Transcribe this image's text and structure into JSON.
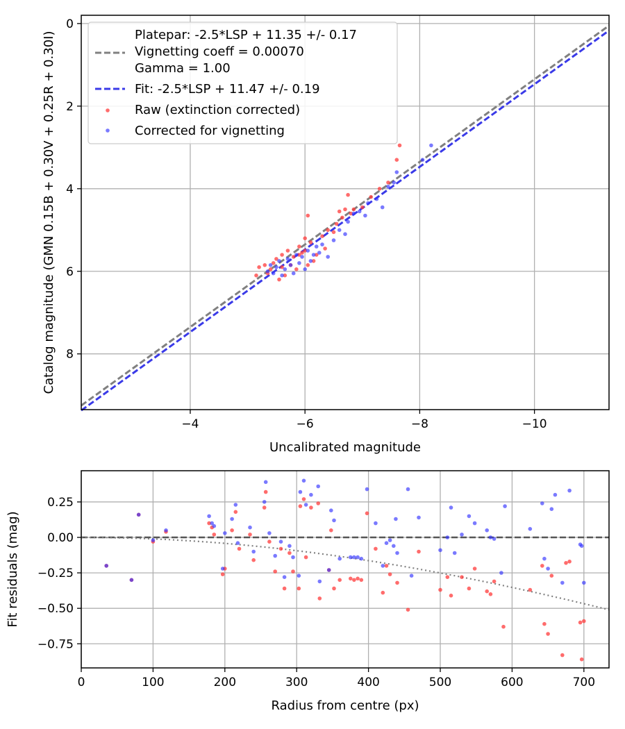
{
  "chart_data": [
    {
      "type": "scatter",
      "xlabel": "Uncalibrated magnitude",
      "ylabel": "Catalog magnitude (GMN 0.15B + 0.30V + 0.25R + 0.30I)",
      "xlim": [
        -2.1,
        -11.3
      ],
      "ylim": [
        9.35,
        -0.2
      ],
      "x_inverted": true,
      "y_inverted": true,
      "xticks": [
        -4,
        -6,
        -8,
        -10
      ],
      "xtick_labels": [
        "−4",
        "−6",
        "−8",
        "−10"
      ],
      "yticks": [
        0,
        2,
        4,
        6,
        8
      ],
      "ytick_labels": [
        "0",
        "2",
        "4",
        "6",
        "8"
      ],
      "grid": true,
      "legend_position": "top-left",
      "legend": [
        {
          "label": "Platepar: -2.5*LSP + 11.35 +/- 0.17",
          "marker": "none"
        },
        {
          "label": "Vignetting coeff = 0.00070",
          "marker": "dashed-line",
          "color": "#808080"
        },
        {
          "label": "Gamma = 1.00",
          "marker": "none"
        },
        {
          "label": "Fit: -2.5*LSP + 11.47 +/- 0.19",
          "marker": "dashed-line",
          "color": "#3a3ae8"
        },
        {
          "label": "Raw (extinction corrected)",
          "marker": "dot",
          "color": "#ff3b3b"
        },
        {
          "label": "Corrected for vignetting",
          "marker": "dot",
          "color": "#3333ff"
        }
      ],
      "lines": [
        {
          "name": "platepar",
          "style": "dashed",
          "color": "#808080",
          "slope": 1.0,
          "intercept": 11.35
        },
        {
          "name": "fit",
          "style": "dashed",
          "color": "#3a3ae8",
          "slope": 1.0,
          "intercept": 11.47
        }
      ],
      "series": [
        {
          "name": "Raw (extinction corrected)",
          "color": "#ff3b3b",
          "points": [
            [
              -5.15,
              6.1
            ],
            [
              -5.2,
              5.9
            ],
            [
              -5.3,
              5.85
            ],
            [
              -5.35,
              6.05
            ],
            [
              -5.4,
              5.95
            ],
            [
              -5.45,
              5.8
            ],
            [
              -5.5,
              5.7
            ],
            [
              -5.55,
              6.2
            ],
            [
              -5.6,
              5.6
            ],
            [
              -5.6,
              5.9
            ],
            [
              -5.65,
              6.1
            ],
            [
              -5.7,
              5.5
            ],
            [
              -5.75,
              5.85
            ],
            [
              -5.8,
              5.65
            ],
            [
              -5.85,
              5.95
            ],
            [
              -5.9,
              5.4
            ],
            [
              -5.9,
              5.6
            ],
            [
              -5.95,
              5.55
            ],
            [
              -6.0,
              5.2
            ],
            [
              -6.0,
              5.5
            ],
            [
              -6.05,
              4.65
            ],
            [
              -6.05,
              5.85
            ],
            [
              -6.1,
              5.3
            ],
            [
              -6.15,
              5.75
            ],
            [
              -6.2,
              5.6
            ],
            [
              -6.3,
              5.15
            ],
            [
              -6.35,
              5.45
            ],
            [
              -6.4,
              5.0
            ],
            [
              -6.5,
              5.05
            ],
            [
              -6.55,
              4.85
            ],
            [
              -6.6,
              4.55
            ],
            [
              -6.65,
              4.7
            ],
            [
              -6.7,
              4.5
            ],
            [
              -6.75,
              4.15
            ],
            [
              -6.8,
              4.6
            ],
            [
              -6.85,
              4.5
            ],
            [
              -7.0,
              4.45
            ],
            [
              -7.15,
              4.2
            ],
            [
              -7.3,
              4.0
            ],
            [
              -7.45,
              3.85
            ],
            [
              -7.6,
              3.3
            ],
            [
              -7.65,
              2.95
            ]
          ]
        },
        {
          "name": "Corrected for vignetting",
          "color": "#3333ff",
          "points": [
            [
              -5.35,
              6.0
            ],
            [
              -5.4,
              5.85
            ],
            [
              -5.45,
              6.05
            ],
            [
              -5.5,
              5.9
            ],
            [
              -5.55,
              5.75
            ],
            [
              -5.6,
              6.1
            ],
            [
              -5.65,
              5.95
            ],
            [
              -5.7,
              5.7
            ],
            [
              -5.75,
              5.85
            ],
            [
              -5.8,
              6.05
            ],
            [
              -5.85,
              5.6
            ],
            [
              -5.9,
              5.8
            ],
            [
              -5.95,
              5.65
            ],
            [
              -6.0,
              5.95
            ],
            [
              -6.05,
              5.5
            ],
            [
              -6.1,
              5.75
            ],
            [
              -6.15,
              5.6
            ],
            [
              -6.2,
              5.4
            ],
            [
              -6.25,
              5.55
            ],
            [
              -6.3,
              5.35
            ],
            [
              -6.4,
              5.65
            ],
            [
              -6.5,
              5.25
            ],
            [
              -6.6,
              5.0
            ],
            [
              -6.7,
              5.1
            ],
            [
              -6.75,
              4.8
            ],
            [
              -6.85,
              4.6
            ],
            [
              -6.95,
              4.55
            ],
            [
              -7.05,
              4.65
            ],
            [
              -7.1,
              4.35
            ],
            [
              -7.25,
              4.25
            ],
            [
              -7.35,
              4.45
            ],
            [
              -7.45,
              3.95
            ],
            [
              -7.55,
              3.85
            ],
            [
              -7.6,
              3.6
            ],
            [
              -8.05,
              3.3
            ],
            [
              -8.2,
              2.95
            ]
          ]
        }
      ]
    },
    {
      "type": "scatter",
      "xlabel": "Radius from centre (px)",
      "ylabel": "Fit residuals (mag)",
      "xlim": [
        0,
        735
      ],
      "ylim": [
        -0.92,
        0.47
      ],
      "xticks": [
        0,
        100,
        200,
        300,
        400,
        500,
        600,
        700
      ],
      "xtick_labels": [
        "0",
        "100",
        "200",
        "300",
        "400",
        "500",
        "600",
        "700"
      ],
      "yticks": [
        0.25,
        0.0,
        -0.25,
        -0.5,
        -0.75
      ],
      "ytick_labels": [
        "0.25",
        "0.00",
        "−0.25",
        "−0.50",
        "−0.75"
      ],
      "grid": true,
      "lines": [
        {
          "name": "zero",
          "style": "dashed",
          "color": "#555555",
          "y": 0
        },
        {
          "name": "vignetting-model",
          "style": "dotted",
          "color": "#808080",
          "coeff": 0.0007
        }
      ],
      "series": [
        {
          "name": "Raw (extinction corrected)",
          "color": "#ff3b3b",
          "points": [
            [
              35,
              -0.2
            ],
            [
              70,
              -0.3
            ],
            [
              80,
              0.16
            ],
            [
              100,
              -0.03
            ],
            [
              118,
              0.04
            ],
            [
              178,
              0.1
            ],
            [
              182,
              0.07
            ],
            [
              185,
              0.02
            ],
            [
              197,
              -0.26
            ],
            [
              200,
              -0.22
            ],
            [
              210,
              0.05
            ],
            [
              215,
              0.18
            ],
            [
              220,
              -0.08
            ],
            [
              235,
              0.02
            ],
            [
              240,
              -0.16
            ],
            [
              255,
              0.21
            ],
            [
              257,
              0.32
            ],
            [
              262,
              -0.03
            ],
            [
              270,
              -0.24
            ],
            [
              278,
              -0.08
            ],
            [
              283,
              -0.36
            ],
            [
              290,
              -0.11
            ],
            [
              295,
              -0.24
            ],
            [
              303,
              -0.36
            ],
            [
              305,
              0.22
            ],
            [
              310,
              0.27
            ],
            [
              313,
              -0.14
            ],
            [
              320,
              0.21
            ],
            [
              330,
              0.24
            ],
            [
              332,
              -0.43
            ],
            [
              345,
              -0.23
            ],
            [
              348,
              0.05
            ],
            [
              352,
              -0.36
            ],
            [
              360,
              -0.3
            ],
            [
              375,
              -0.29
            ],
            [
              380,
              -0.3
            ],
            [
              385,
              -0.29
            ],
            [
              390,
              -0.3
            ],
            [
              398,
              0.17
            ],
            [
              410,
              -0.08
            ],
            [
              420,
              -0.39
            ],
            [
              425,
              -0.2
            ],
            [
              430,
              -0.26
            ],
            [
              440,
              -0.32
            ],
            [
              455,
              -0.51
            ],
            [
              470,
              -0.1
            ],
            [
              500,
              -0.37
            ],
            [
              510,
              -0.28
            ],
            [
              515,
              -0.41
            ],
            [
              530,
              -0.28
            ],
            [
              540,
              -0.36
            ],
            [
              548,
              -0.22
            ],
            [
              565,
              -0.38
            ],
            [
              570,
              -0.4
            ],
            [
              575,
              -0.31
            ],
            [
              588,
              -0.63
            ],
            [
              625,
              -0.37
            ],
            [
              642,
              -0.2
            ],
            [
              645,
              -0.61
            ],
            [
              650,
              -0.68
            ],
            [
              655,
              -0.27
            ],
            [
              670,
              -0.83
            ],
            [
              675,
              -0.18
            ],
            [
              680,
              -0.17
            ],
            [
              695,
              -0.6
            ],
            [
              697,
              -0.86
            ],
            [
              700,
              -0.59
            ]
          ]
        },
        {
          "name": "Corrected for vignetting",
          "color": "#3333ff",
          "points": [
            [
              35,
              -0.2
            ],
            [
              70,
              -0.3
            ],
            [
              80,
              0.16
            ],
            [
              100,
              -0.02
            ],
            [
              118,
              0.05
            ],
            [
              178,
              0.15
            ],
            [
              182,
              0.1
            ],
            [
              185,
              0.08
            ],
            [
              197,
              -0.22
            ],
            [
              200,
              0.03
            ],
            [
              210,
              0.13
            ],
            [
              215,
              0.23
            ],
            [
              218,
              -0.04
            ],
            [
              235,
              0.07
            ],
            [
              240,
              -0.1
            ],
            [
              255,
              0.25
            ],
            [
              257,
              0.39
            ],
            [
              262,
              0.03
            ],
            [
              270,
              -0.13
            ],
            [
              278,
              -0.03
            ],
            [
              283,
              -0.28
            ],
            [
              290,
              -0.06
            ],
            [
              295,
              -0.14
            ],
            [
              303,
              -0.27
            ],
            [
              305,
              0.32
            ],
            [
              310,
              0.4
            ],
            [
              313,
              0.23
            ],
            [
              320,
              0.3
            ],
            [
              330,
              0.36
            ],
            [
              332,
              -0.31
            ],
            [
              345,
              -0.23
            ],
            [
              348,
              0.19
            ],
            [
              352,
              0.12
            ],
            [
              360,
              -0.15
            ],
            [
              375,
              -0.14
            ],
            [
              380,
              -0.14
            ],
            [
              385,
              -0.14
            ],
            [
              390,
              -0.15
            ],
            [
              398,
              0.34
            ],
            [
              410,
              0.1
            ],
            [
              420,
              -0.2
            ],
            [
              425,
              -0.04
            ],
            [
              430,
              -0.02
            ],
            [
              435,
              -0.06
            ],
            [
              438,
              0.13
            ],
            [
              440,
              -0.11
            ],
            [
              455,
              0.34
            ],
            [
              460,
              -0.27
            ],
            [
              470,
              0.14
            ],
            [
              500,
              -0.09
            ],
            [
              510,
              0.0
            ],
            [
              515,
              0.21
            ],
            [
              520,
              -0.11
            ],
            [
              530,
              0.02
            ],
            [
              540,
              0.15
            ],
            [
              548,
              0.1
            ],
            [
              565,
              0.05
            ],
            [
              570,
              0.0
            ],
            [
              575,
              -0.01
            ],
            [
              585,
              -0.25
            ],
            [
              590,
              0.22
            ],
            [
              625,
              0.06
            ],
            [
              642,
              0.24
            ],
            [
              645,
              -0.15
            ],
            [
              650,
              -0.22
            ],
            [
              655,
              0.2
            ],
            [
              660,
              0.3
            ],
            [
              670,
              -0.32
            ],
            [
              680,
              0.33
            ],
            [
              695,
              -0.05
            ],
            [
              697,
              -0.06
            ],
            [
              700,
              -0.32
            ]
          ]
        }
      ]
    }
  ]
}
